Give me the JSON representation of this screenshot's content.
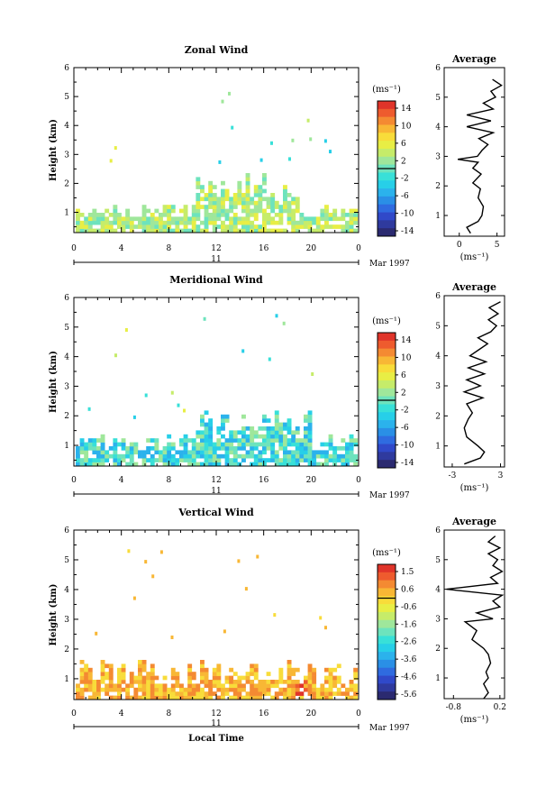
{
  "common": {
    "x_ticks": [
      "0",
      "4",
      "8",
      "12",
      "16",
      "20",
      "0"
    ],
    "day_label": "11",
    "month_label": "Mar 1997",
    "xlabel": "Local Time",
    "ylabel": "Height (km)",
    "y_ticks": [
      "1",
      "2",
      "3",
      "4",
      "5",
      "6"
    ],
    "average_title": "Average",
    "unit_label": "(ms⁻¹)"
  },
  "chart_data": [
    {
      "type": "heatmap",
      "title": "Zonal Wind",
      "xlabel": "Local Time",
      "ylabel": "Height (km)",
      "xlim": [
        0,
        24
      ],
      "ylim": [
        0.3,
        6
      ],
      "colorbar": {
        "unit": "(ms⁻¹)",
        "ticks": [
          "14",
          "10",
          "6",
          "2",
          "-2",
          "-6",
          "-10",
          "-14"
        ],
        "range": [
          -16,
          16
        ]
      },
      "profile": {
        "title": "Average",
        "xticks": [
          "0",
          "5"
        ],
        "xlim": [
          -2,
          6
        ],
        "heights": [
          0.4,
          0.6,
          0.8,
          1.0,
          1.3,
          1.6,
          1.9,
          2.1,
          2.4,
          2.6,
          2.8,
          2.9,
          3.0,
          3.2,
          3.4,
          3.6,
          3.8,
          4.0,
          4.2,
          4.4,
          4.6,
          4.8,
          5.0,
          5.2,
          5.4,
          5.6
        ],
        "values": [
          1.5,
          1.0,
          2.5,
          3.0,
          3.2,
          2.5,
          2.8,
          1.8,
          2.9,
          1.8,
          2.5,
          -0.2,
          2.4,
          3.0,
          3.8,
          2.6,
          4.5,
          1.0,
          4.2,
          1.0,
          4.5,
          3.2,
          4.8,
          4.2,
          5.6,
          4.4
        ]
      }
    },
    {
      "type": "heatmap",
      "title": "Meridional Wind",
      "xlabel": "Local Time",
      "ylabel": "Height (km)",
      "xlim": [
        0,
        24
      ],
      "ylim": [
        0.3,
        6
      ],
      "colorbar": {
        "unit": "(ms⁻¹)",
        "ticks": [
          "14",
          "10",
          "6",
          "2",
          "-2",
          "-6",
          "-10",
          "-14"
        ],
        "range": [
          -16,
          16
        ]
      },
      "profile": {
        "title": "Average",
        "xticks": [
          "-3",
          "3"
        ],
        "xlim": [
          -4,
          3.5
        ],
        "heights": [
          0.4,
          0.6,
          0.8,
          1.0,
          1.3,
          1.6,
          1.9,
          2.1,
          2.4,
          2.6,
          2.8,
          3.0,
          3.2,
          3.4,
          3.6,
          3.8,
          4.0,
          4.2,
          4.4,
          4.6,
          4.8,
          5.0,
          5.2,
          5.4,
          5.6,
          5.8
        ],
        "values": [
          -1.5,
          0.5,
          1.0,
          0.2,
          -1.2,
          -1.5,
          -1.0,
          -0.5,
          -1.2,
          0.8,
          -1.5,
          0.5,
          -1.2,
          1.0,
          -1.0,
          1.2,
          -0.8,
          0.3,
          1.4,
          0.2,
          1.8,
          2.5,
          1.5,
          2.7,
          1.6,
          3.0
        ]
      }
    },
    {
      "type": "heatmap",
      "title": "Vertical Wind",
      "xlabel": "Local Time",
      "ylabel": "Height (km)",
      "xlim": [
        0,
        24
      ],
      "ylim": [
        0.3,
        6
      ],
      "colorbar": {
        "unit": "(ms⁻¹)",
        "ticks": [
          "1.5",
          "0.6",
          "-0.6",
          "-1.6",
          "-2.6",
          "-3.6",
          "-4.6",
          "-5.6"
        ],
        "range": [
          -6.1,
          2.0
        ]
      },
      "profile": {
        "title": "Average",
        "xticks": [
          "-0.8",
          "0.2"
        ],
        "xlim": [
          -1.0,
          0.3
        ],
        "heights": [
          0.3,
          0.5,
          0.8,
          1.0,
          1.2,
          1.5,
          1.8,
          2.0,
          2.3,
          2.6,
          2.9,
          3.0,
          3.2,
          3.4,
          3.6,
          3.8,
          4.0,
          4.2,
          4.4,
          4.6,
          4.8,
          5.0,
          5.2,
          5.4,
          5.6,
          5.8
        ],
        "values": [
          -0.15,
          -0.05,
          -0.15,
          -0.05,
          -0.1,
          0.0,
          -0.05,
          -0.15,
          -0.4,
          -0.3,
          -0.55,
          0.05,
          -0.3,
          0.2,
          0.05,
          0.25,
          -0.95,
          0.15,
          0.0,
          0.25,
          0.05,
          0.15,
          -0.05,
          0.2,
          -0.05,
          0.1
        ]
      }
    }
  ]
}
